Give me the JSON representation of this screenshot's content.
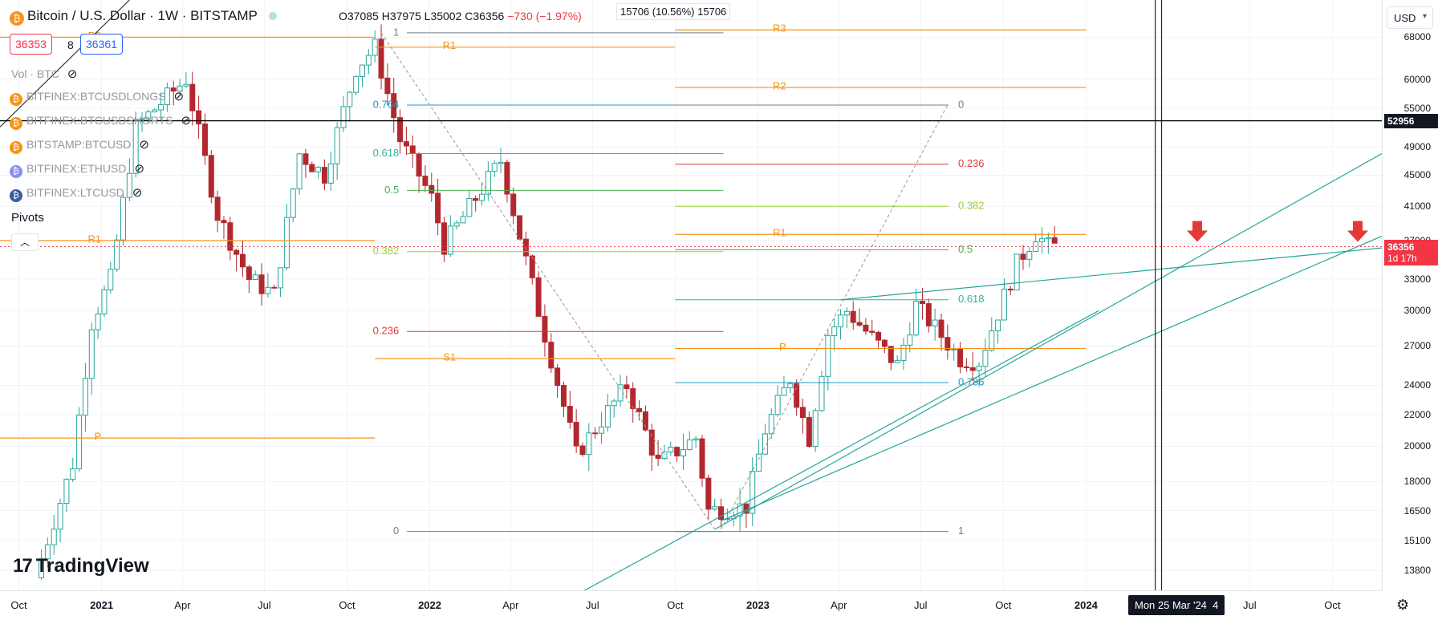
{
  "header": {
    "symbol_title": "Bitcoin / U.S. Dollar · 1W · BITSTAMP",
    "ohlc": {
      "o": "O37085",
      "h": "H37975",
      "l": "L35002",
      "c": "C36356",
      "change": "−730 (−1.97%)"
    },
    "measure": "15706 (10.56%) 15706",
    "bid": "36353",
    "spread": "8",
    "ask": "36361",
    "volume": "Vol · BTC",
    "pivots_label": "Pivots",
    "collapse_icon": "chevron-up-icon",
    "series": [
      {
        "label": "BITFINEX:BTCUSDLONGS",
        "icon": "bitcoin-icon",
        "color": "#f7931a"
      },
      {
        "label": "BITFINEX:BTCUSDSHORTS",
        "icon": "bitcoin-icon",
        "color": "#f7931a"
      },
      {
        "label": "BITSTAMP:BTCUSD",
        "icon": "bitcoin-icon",
        "color": "#f7931a"
      },
      {
        "label": "BITFINEX:ETHUSD",
        "icon": "ethereum-icon",
        "color": "#8c8cf0"
      },
      {
        "label": "BITFINEX:LTCUSD",
        "icon": "litecoin-icon",
        "color": "#345d9d"
      }
    ]
  },
  "currency": "USD",
  "logo": "TradingView",
  "cross_date": "Mon 25 Mar '24",
  "cross_extra": "4",
  "colors": {
    "up": "#26a69a",
    "down": "#b2282e",
    "pivot": "#f7931a",
    "fib_red": "#e53935",
    "fib_green": "#4caf50",
    "fib_olive": "#9ccc3b",
    "fib_teal": "#2bb69b",
    "fib_blue": "#2196c9",
    "trend": "#26a69a",
    "arrow": "#e53935"
  },
  "chart_data": {
    "type": "candlestick",
    "title": "Bitcoin / U.S. Dollar · 1W · BITSTAMP",
    "yscale": "log",
    "ylim": [
      13000,
      76000
    ],
    "y_ticks": [
      13800,
      15100,
      16500,
      18000,
      20000,
      22000,
      24000,
      27000,
      30000,
      33000,
      37000,
      41000,
      45000,
      49000,
      55000,
      60000,
      68000
    ],
    "x_ticks": [
      {
        "label": "Oct",
        "date": "2020-10-01"
      },
      {
        "label": "2021",
        "date": "2021-01-01",
        "year": true
      },
      {
        "label": "Apr",
        "date": "2021-04-01"
      },
      {
        "label": "Jul",
        "date": "2021-07-01"
      },
      {
        "label": "Oct",
        "date": "2021-10-01"
      },
      {
        "label": "2022",
        "date": "2022-01-01",
        "year": true
      },
      {
        "label": "Apr",
        "date": "2022-04-01"
      },
      {
        "label": "Jul",
        "date": "2022-07-01"
      },
      {
        "label": "Oct",
        "date": "2022-10-01"
      },
      {
        "label": "2023",
        "date": "2023-01-01",
        "year": true
      },
      {
        "label": "Apr",
        "date": "2023-04-01"
      },
      {
        "label": "Jul",
        "date": "2023-07-01"
      },
      {
        "label": "Oct",
        "date": "2023-10-01"
      },
      {
        "label": "2024",
        "date": "2024-01-01",
        "year": true
      },
      {
        "label": "Jul",
        "date": "2024-07-01"
      },
      {
        "label": "Oct",
        "date": "2024-10-01"
      }
    ],
    "xlim": [
      "2020-09-10",
      "2024-11-25"
    ],
    "price_path": [
      [
        "2020-10-26",
        13500
      ],
      [
        "2020-12-07",
        19000
      ],
      [
        "2020-12-28",
        29000
      ],
      [
        "2021-01-18",
        33000
      ],
      [
        "2021-02-15",
        52000
      ],
      [
        "2021-04-12",
        60000
      ],
      [
        "2021-05-17",
        40000
      ],
      [
        "2021-06-21",
        33000
      ],
      [
        "2021-07-19",
        31500
      ],
      [
        "2021-08-16",
        48000
      ],
      [
        "2021-09-13",
        45000
      ],
      [
        "2021-10-18",
        62000
      ],
      [
        "2021-11-08",
        66000
      ],
      [
        "2021-12-06",
        50000
      ],
      [
        "2022-01-10",
        42000
      ],
      [
        "2022-01-24",
        36500
      ],
      [
        "2022-03-28",
        47000
      ],
      [
        "2022-05-09",
        30000
      ],
      [
        "2022-06-13",
        21000
      ],
      [
        "2022-06-20",
        19500
      ],
      [
        "2022-08-15",
        24000
      ],
      [
        "2022-09-19",
        19000
      ],
      [
        "2022-10-31",
        20500
      ],
      [
        "2022-11-14",
        16500
      ],
      [
        "2022-12-26",
        16700
      ],
      [
        "2023-01-16",
        21000
      ],
      [
        "2023-02-13",
        24500
      ],
      [
        "2023-03-06",
        20500
      ],
      [
        "2023-03-27",
        28000
      ],
      [
        "2023-04-17",
        30000
      ],
      [
        "2023-06-12",
        25500
      ],
      [
        "2023-07-03",
        30500
      ],
      [
        "2023-08-21",
        26000
      ],
      [
        "2023-09-11",
        25800
      ],
      [
        "2023-10-23",
        34500
      ],
      [
        "2023-11-13",
        37800
      ],
      [
        "2023-11-27",
        36356
      ]
    ],
    "last_price": {
      "value": 36356,
      "label": "36356",
      "countdown": "1d 17h"
    },
    "crosshair_price": {
      "value": 52956,
      "label": "52956"
    },
    "pivot_points": [
      {
        "label": "R3",
        "value": 68000,
        "x0": "2020-09-10",
        "x1": "2021-11-01"
      },
      {
        "label": "R1",
        "value": 37000,
        "x0": "2020-09-10",
        "x1": "2021-11-01"
      },
      {
        "label": "P",
        "value": 20500,
        "x0": "2020-09-10",
        "x1": "2021-11-01"
      },
      {
        "label": "R1",
        "value": 66000,
        "x0": "2021-11-01",
        "x1": "2022-10-01"
      },
      {
        "label": "S1",
        "value": 26000,
        "x0": "2021-11-01",
        "x1": "2022-10-01"
      },
      {
        "label": "R3",
        "value": 69500,
        "x0": "2022-10-01",
        "x1": "2024-01-01"
      },
      {
        "label": "R2",
        "value": 58500,
        "x0": "2022-10-01",
        "x1": "2024-01-01"
      },
      {
        "label": "R1",
        "value": 37700,
        "x0": "2022-10-01",
        "x1": "2024-01-01"
      },
      {
        "label": "P",
        "value": 26800,
        "x0": "2022-10-01",
        "x1": "2024-01-01"
      }
    ],
    "fib_retracements": [
      {
        "label": "1",
        "value": 68900
      },
      {
        "label": "0.764",
        "value": 55500
      },
      {
        "label": "0.618",
        "value": 48000
      },
      {
        "label": "0.5",
        "value": 43000
      },
      {
        "label": "0.382",
        "value": 35800
      },
      {
        "label": "0.236",
        "value": 28200
      },
      {
        "label": "0",
        "value": 15500
      }
    ],
    "fib_extensions": [
      {
        "label": "0",
        "value": 55500
      },
      {
        "label": "0.236",
        "value": 46500
      },
      {
        "label": "0.382",
        "value": 41000
      },
      {
        "label": "0.5",
        "value": 36000
      },
      {
        "label": "0.618",
        "value": 31000
      },
      {
        "label": "0.786",
        "value": 24200
      },
      {
        "label": "1",
        "value": 15500
      }
    ],
    "trendlines": [
      {
        "p1": [
          "2022-11-14",
          15600
        ],
        "p2": [
          "2024-11-25",
          48000
        ]
      },
      {
        "p1": [
          "2022-11-21",
          16000
        ],
        "p2": [
          "2024-11-25",
          37500
        ]
      },
      {
        "p1": [
          "2023-04-03",
          31000
        ],
        "p2": [
          "2024-11-25",
          36200
        ]
      },
      {
        "p1": [
          "2022-06-01",
          12600
        ],
        "p2": [
          "2024-01-15",
          30000
        ]
      }
    ],
    "vertical_lines": [
      "2024-03-18",
      "2024-03-25"
    ]
  }
}
